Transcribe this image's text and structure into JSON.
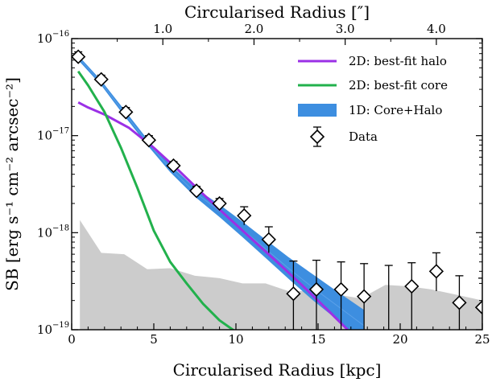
{
  "chart_data": {
    "type": "line",
    "xlabel": "Circularised Radius [kpc]",
    "ylabel": "SB [erg s⁻¹ cm⁻² arcsec⁻²]",
    "top_xlabel": "Circularised Radius [″]",
    "xlim": [
      0,
      25
    ],
    "ylim": [
      1e-19,
      1e-16
    ],
    "yscale": "log",
    "xticks": [
      "0",
      "5",
      "10",
      "15",
      "20",
      "25"
    ],
    "top_xticks": [
      {
        "label": "1.0",
        "kpc": 5.55
      },
      {
        "label": "2.0",
        "kpc": 11.1
      },
      {
        "label": "3.0",
        "kpc": 16.65
      },
      {
        "label": "4.0",
        "kpc": 22.2
      }
    ],
    "yticks": [
      {
        "value": 1e-19,
        "mant": "10",
        "exp": "−19"
      },
      {
        "value": 1e-18,
        "mant": "10",
        "exp": "−18"
      },
      {
        "value": 1e-17,
        "mant": "10",
        "exp": "−17"
      },
      {
        "value": 1e-16,
        "mant": "10",
        "exp": "−16"
      }
    ],
    "legend_position": "top-right",
    "legend": [
      {
        "label": "2D: best-fit halo",
        "kind": "line",
        "color": "#9b30e6"
      },
      {
        "label": "2D: best-fit core",
        "kind": "line",
        "color": "#22b14c"
      },
      {
        "label": "1D: Core+Halo",
        "kind": "band",
        "color": "#3d8ee0"
      },
      {
        "label": "Data",
        "kind": "marker",
        "color": "#000000"
      }
    ],
    "series": {
      "noise": {
        "color": "#cccccc",
        "x": [
          0.5,
          1.8,
          3.2,
          4.6,
          6.0,
          7.5,
          9.0,
          10.4,
          11.8,
          13.2,
          14.7,
          16.2,
          17.6,
          19.1,
          20.5,
          21.9,
          23.4,
          25.0
        ],
        "y": [
          1.35e-18,
          6.2e-19,
          6e-19,
          4.2e-19,
          4.3e-19,
          3.6e-19,
          3.4e-19,
          3e-19,
          3e-19,
          2.5e-19,
          2.5e-19,
          2.3e-19,
          2.1e-19,
          2.9e-19,
          2.8e-19,
          2.6e-19,
          2.3e-19,
          2e-19
        ]
      },
      "band": {
        "color": "#3d8ee0",
        "x": [
          0.4,
          1.8,
          3.2,
          4.6,
          6.0,
          7.5,
          9.0,
          10.4,
          11.8,
          13.2,
          14.7,
          16.2,
          17.8
        ],
        "upper": [
          6.7e-17,
          3.7e-17,
          1.85e-17,
          9.2e-18,
          5e-18,
          2.9e-18,
          1.95e-18,
          1.3e-18,
          8.5e-19,
          5.6e-19,
          3.7e-19,
          2.45e-19,
          1.6e-19
        ],
        "lower": [
          6e-17,
          3.3e-17,
          1.6e-17,
          8e-18,
          4.2e-18,
          2.35e-18,
          1.45e-18,
          9e-19,
          5.5e-19,
          3.35e-19,
          2e-19,
          1.25e-19,
          7.5e-20
        ]
      },
      "model_line": {
        "color": "#5aa0e8",
        "x": [
          0.4,
          1.8,
          3.2,
          4.6,
          6.0,
          7.5,
          9.0,
          10.4,
          11.8,
          13.2,
          14.7,
          16.2,
          17.8
        ],
        "y": [
          6.4e-17,
          3.5e-17,
          1.72e-17,
          8.6e-18,
          4.6e-18,
          2.6e-18,
          1.68e-18,
          1.08e-18,
          6.8e-19,
          4.3e-19,
          2.7e-19,
          1.75e-19,
          1.1e-19
        ]
      },
      "halo": {
        "name": "2D: best-fit halo",
        "color": "#9b30e6",
        "x": [
          0.4,
          1.0,
          2.0,
          3.5,
          5.0,
          6.5,
          8.0,
          9.5,
          11.0,
          12.5,
          14.0,
          15.5,
          16.8
        ],
        "y": [
          2.2e-17,
          1.95e-17,
          1.65e-17,
          1.2e-17,
          7.5e-18,
          4.4e-18,
          2.5e-18,
          1.45e-18,
          8.5e-19,
          5e-19,
          2.9e-19,
          1.65e-19,
          1e-19
        ]
      },
      "core": {
        "name": "2D: best-fit core",
        "color": "#22b14c",
        "x": [
          0.4,
          1.0,
          2.0,
          3.0,
          4.0,
          5.0,
          6.0,
          7.0,
          8.0,
          9.0,
          10.0
        ],
        "y": [
          4.6e-17,
          3.3e-17,
          1.75e-17,
          7.5e-18,
          2.9e-18,
          1.05e-18,
          5e-19,
          3e-19,
          1.85e-19,
          1.25e-19,
          9.5e-20
        ]
      },
      "data": {
        "name": "Data",
        "x": [
          0.4,
          1.8,
          3.3,
          4.7,
          6.2,
          7.6,
          9.0,
          10.5,
          12.0,
          13.5,
          14.9,
          16.4,
          17.8,
          19.3,
          20.7,
          22.2,
          23.6,
          25.0
        ],
        "y": [
          6.5e-17,
          3.8e-17,
          1.75e-17,
          9e-18,
          4.9e-18,
          2.7e-18,
          2e-18,
          1.5e-18,
          8.5e-19,
          2.35e-19,
          2.6e-19,
          2.6e-19,
          2.2e-19,
          null,
          2.8e-19,
          4e-19,
          1.9e-19,
          1.7e-19
        ],
        "err_hi": [
          7.3e-17,
          4.2e-17,
          1.95e-17,
          1e-17,
          5.4e-18,
          3e-18,
          2.25e-18,
          1.85e-18,
          1.15e-18,
          5.1e-19,
          5.2e-19,
          5e-19,
          4.8e-19,
          4.6e-19,
          4.9e-19,
          6.2e-19,
          3.6e-19,
          3.4e-19
        ],
        "err_lo": [
          5.8e-17,
          3.4e-17,
          1.58e-17,
          8e-18,
          4.4e-18,
          2.4e-18,
          1.75e-18,
          1.2e-18,
          6.2e-19,
          1e-19,
          1e-19,
          1e-19,
          1e-19,
          1e-19,
          1e-19,
          2.5e-19,
          1e-19,
          1e-19
        ]
      }
    }
  }
}
